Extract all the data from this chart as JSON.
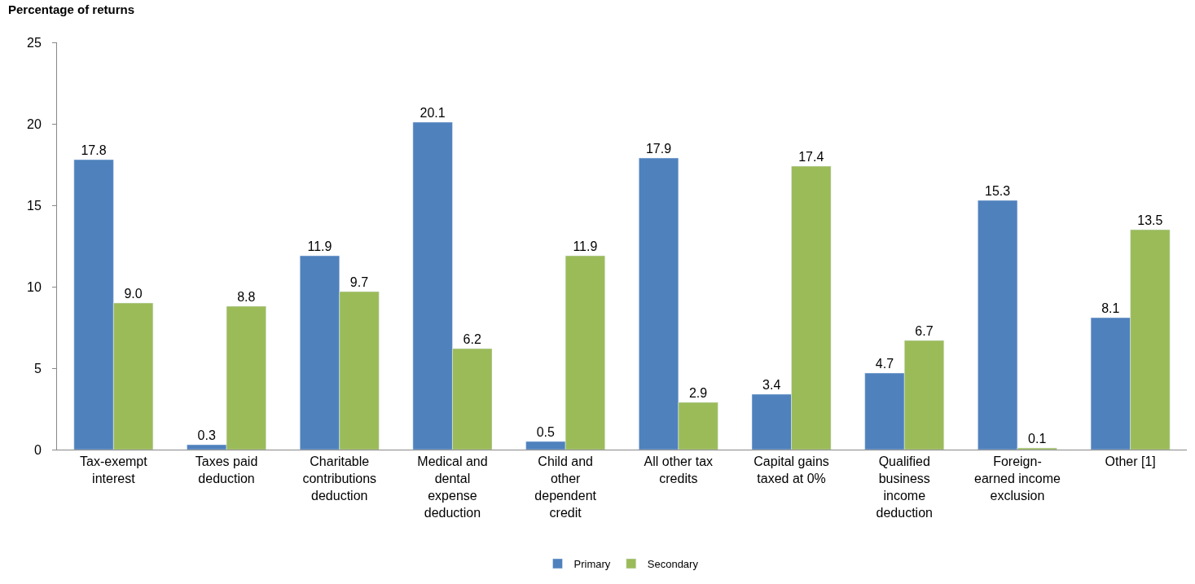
{
  "chart_data": {
    "type": "bar",
    "ylabel": "Percentage of returns",
    "categories": [
      "Tax-exempt\ninterest",
      "Taxes paid\ndeduction",
      "Charitable\ncontributions\ndeduction",
      "Medical and\ndental\nexpense\ndeduction",
      "Child and\nother\ndependent\ncredit",
      "All other tax\ncredits",
      "Capital gains\ntaxed at 0%",
      "Qualified\nbusiness\nincome\ndeduction",
      "Foreign-\nearned income\nexclusion",
      "Other [1]"
    ],
    "series": [
      {
        "name": "Primary",
        "color": "#4f81bd",
        "values": [
          17.8,
          0.3,
          11.9,
          20.1,
          0.5,
          17.9,
          3.4,
          4.7,
          15.3,
          8.1
        ],
        "value_labels": [
          "17.8",
          "0.3",
          "11.9",
          "20.1",
          "0.5",
          "17.9",
          "3.4",
          "4.7",
          "15.3",
          "8.1"
        ]
      },
      {
        "name": "Secondary",
        "color": "#9bbb59",
        "values": [
          9.0,
          8.8,
          9.7,
          6.2,
          11.9,
          2.9,
          17.4,
          6.7,
          0.1,
          13.5
        ],
        "value_labels": [
          "9.0",
          "8.8",
          "9.7",
          "6.2",
          "11.9",
          "2.9",
          "17.4",
          "6.7",
          "0.1",
          "13.5"
        ]
      }
    ],
    "ylim": [
      0,
      25
    ],
    "yticks": [
      0,
      5,
      10,
      15,
      20,
      25
    ],
    "legend": "bottom"
  }
}
